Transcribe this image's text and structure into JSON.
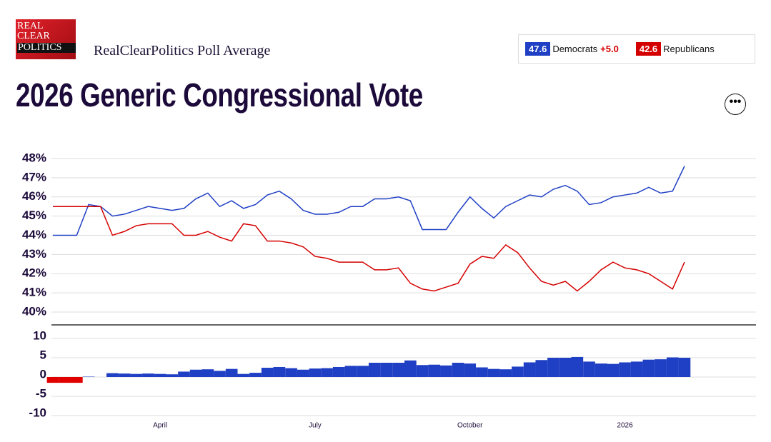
{
  "header": {
    "logo": [
      "REAL",
      "CLEAR",
      "POLITICS"
    ],
    "subtitle": "RealClearPolitics Poll Average",
    "title": "2026 Generic Congressional Vote"
  },
  "chart_data": {
    "type": "line",
    "categories": [
      null,
      null,
      null,
      null,
      null,
      null,
      null,
      null,
      null,
      "April",
      null,
      null,
      null,
      null,
      null,
      null,
      null,
      null,
      null,
      null,
      null,
      null,
      "July",
      null,
      null,
      null,
      null,
      null,
      null,
      null,
      null,
      null,
      null,
      null,
      null,
      "October",
      null,
      null,
      null,
      null,
      null,
      null,
      null,
      null,
      null,
      null,
      null,
      null,
      "2026",
      null,
      null,
      null,
      null,
      null,
      null,
      null,
      null,
      null,
      null,
      null
    ],
    "series": [
      {
        "name": "Democrats",
        "color": "#1f3fc4",
        "latest": 47.6,
        "lead": "+5.0",
        "values": [
          44.0,
          44.0,
          44.0,
          45.6,
          45.5,
          45.0,
          45.1,
          45.3,
          45.5,
          45.4,
          45.3,
          45.4,
          45.9,
          46.2,
          45.5,
          45.8,
          45.4,
          45.6,
          46.1,
          46.3,
          45.9,
          45.3,
          45.1,
          45.1,
          45.2,
          45.5,
          45.5,
          45.9,
          45.9,
          46.0,
          45.8,
          44.3,
          44.3,
          44.3,
          45.2,
          46.0,
          45.4,
          44.9,
          45.5,
          45.8,
          46.1,
          46.0,
          46.4,
          46.6,
          46.3,
          45.6,
          45.7,
          46.0,
          46.1,
          46.2,
          46.5,
          46.2,
          46.3,
          47.6,
          null,
          null,
          null,
          null,
          null,
          null
        ]
      },
      {
        "name": "Republicans",
        "color": "#d40000",
        "latest": 42.6,
        "values": [
          45.5,
          45.5,
          45.5,
          45.5,
          45.5,
          44.0,
          44.2,
          44.5,
          44.6,
          44.6,
          44.6,
          44.0,
          44.0,
          44.2,
          43.9,
          43.7,
          44.6,
          44.5,
          43.7,
          43.7,
          43.6,
          43.4,
          42.9,
          42.8,
          42.6,
          42.6,
          42.6,
          42.2,
          42.2,
          42.3,
          41.5,
          41.2,
          41.1,
          41.3,
          41.5,
          42.5,
          42.9,
          42.8,
          43.5,
          43.1,
          42.3,
          41.6,
          41.4,
          41.6,
          41.1,
          41.6,
          42.2,
          42.6,
          42.3,
          42.2,
          42.0,
          41.6,
          41.2,
          42.6,
          null,
          null,
          null,
          null,
          null,
          null
        ]
      }
    ],
    "ylim": [
      40,
      48
    ],
    "yticks": [
      {
        "value": 40,
        "label": "40%"
      },
      {
        "value": 41,
        "label": "41%"
      },
      {
        "value": 42,
        "label": "42%"
      },
      {
        "value": 43,
        "label": "43%"
      },
      {
        "value": 44,
        "label": "44%"
      },
      {
        "value": 45,
        "label": "45%"
      },
      {
        "value": 46,
        "label": "46%"
      },
      {
        "value": 47,
        "label": "47%"
      },
      {
        "value": 48,
        "label": "48%"
      }
    ],
    "grid": true,
    "spread": {
      "type": "bar",
      "positive_color": "#1f3fc4",
      "negative_color": "#e00000",
      "values": [
        -1.5,
        -1.5,
        -1.5,
        0.1,
        0.0,
        1.0,
        0.9,
        0.8,
        0.9,
        0.8,
        0.7,
        1.4,
        1.9,
        2.0,
        1.6,
        2.1,
        0.8,
        1.1,
        2.4,
        2.6,
        2.3,
        1.9,
        2.2,
        2.3,
        2.6,
        2.9,
        2.9,
        3.7,
        3.7,
        3.7,
        4.3,
        3.1,
        3.2,
        3.0,
        3.7,
        3.5,
        2.5,
        2.1,
        2.0,
        2.7,
        3.8,
        4.4,
        5.0,
        5.0,
        5.2,
        4.0,
        3.5,
        3.4,
        3.8,
        4.0,
        4.5,
        4.6,
        5.1,
        5.0,
        null,
        null,
        null,
        null,
        null,
        null
      ],
      "ylim": [
        -10,
        10
      ],
      "yticks": [
        10,
        5,
        0,
        -5,
        -10
      ]
    }
  }
}
